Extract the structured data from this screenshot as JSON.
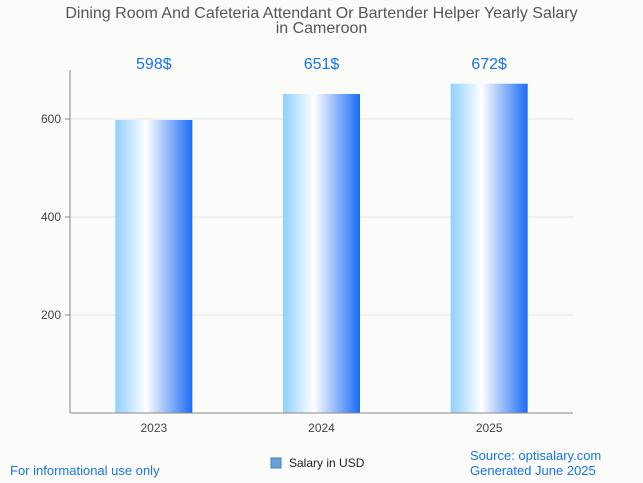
{
  "chart_data": {
    "type": "bar",
    "title_lines": [
      "Dining Room And Cafeteria Attendant Or Bartender Helper Yearly Salary",
      "in Cameroon"
    ],
    "categories": [
      "2023",
      "2024",
      "2025"
    ],
    "series": [
      {
        "name": "Salary in USD",
        "values": [
          598,
          651,
          672
        ]
      }
    ],
    "data_labels": [
      "598$",
      "651$",
      "672$"
    ],
    "yticks": [
      200,
      400,
      600
    ],
    "ylim": [
      0,
      700
    ],
    "grid": true,
    "legend_position": "bottom-center"
  },
  "footer": {
    "disclaimer": "For informational use only",
    "source": "Source: optisalary.com",
    "generated": "Generated June 2025"
  },
  "colors": {
    "bar_light": "#ffffff",
    "bar_mid": "#8fd0ff",
    "bar_dark": "#1a6cf5",
    "accent": "#1a73e8"
  }
}
